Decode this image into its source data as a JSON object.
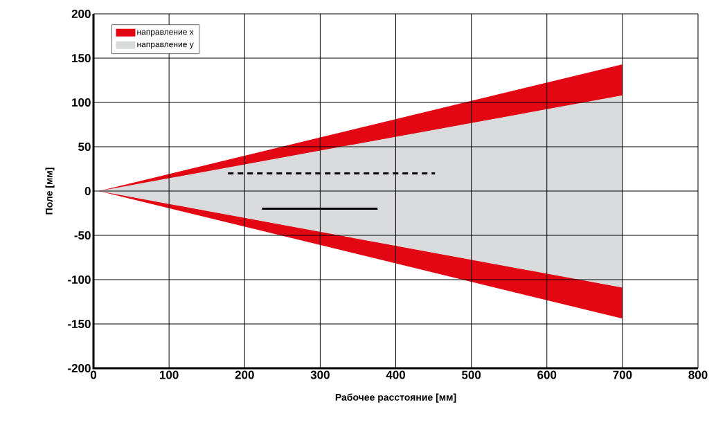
{
  "chart_data": {
    "type": "area",
    "xlabel": "Рабочее расстояние [мм]",
    "ylabel": "Поле [мм]",
    "xlim": [
      0,
      800
    ],
    "ylim": [
      -200,
      200
    ],
    "xticks": [
      0,
      100,
      200,
      300,
      400,
      500,
      600,
      700,
      800
    ],
    "yticks": [
      -200,
      -150,
      -100,
      -50,
      0,
      50,
      100,
      150,
      200
    ],
    "grid": true,
    "legend": "top left",
    "series": [
      {
        "name": "направление x",
        "color": "#e30613",
        "x": [
          7,
          700,
          700
        ],
        "values": [
          0,
          143,
          -144
        ]
      },
      {
        "name": "направление y",
        "color": "#d9dadb",
        "x": [
          7,
          700,
          700
        ],
        "values": [
          0,
          108,
          -109
        ]
      },
      {
        "type": "line",
        "line_style": "dashed",
        "color": "#000000",
        "x": [
          178,
          452
        ],
        "values": [
          20,
          20
        ]
      },
      {
        "type": "line",
        "line_style": "solid",
        "color": "#000000",
        "x": [
          223,
          376
        ],
        "values": [
          -20,
          -20
        ]
      }
    ]
  }
}
